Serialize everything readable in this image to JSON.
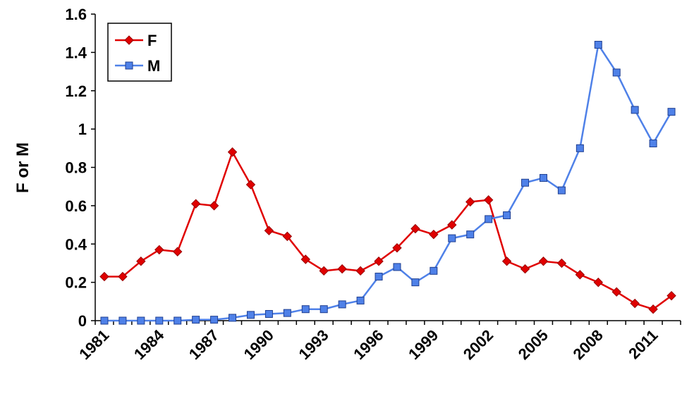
{
  "chart_data": {
    "type": "line",
    "y_label": "F or M",
    "categories": [
      "1981",
      null,
      null,
      "1984",
      null,
      null,
      "1987",
      null,
      null,
      "1990",
      null,
      null,
      "1993",
      null,
      null,
      "1996",
      null,
      null,
      "1999",
      null,
      null,
      "2002",
      null,
      null,
      "2005",
      null,
      null,
      "2008",
      null,
      null,
      "2011",
      null
    ],
    "series": [
      {
        "name": "F",
        "color": "#e00000",
        "marker": "diamond",
        "values": [
          0.23,
          0.23,
          0.31,
          0.37,
          0.36,
          0.61,
          0.6,
          0.88,
          0.71,
          0.47,
          0.44,
          0.32,
          0.26,
          0.27,
          0.26,
          0.31,
          0.38,
          0.48,
          0.45,
          0.5,
          0.62,
          0.63,
          0.31,
          0.27,
          0.31,
          0.3,
          0.24,
          0.2,
          0.15,
          0.09,
          0.06,
          0.13
        ]
      },
      {
        "name": "M",
        "color": "#4f81e8",
        "marker": "square",
        "values": [
          0,
          0,
          0,
          0,
          0,
          0.005,
          0.005,
          0.015,
          0.03,
          0.035,
          0.04,
          0.06,
          0.06,
          0.085,
          0.105,
          0.23,
          0.28,
          0.2,
          0.26,
          0.43,
          0.45,
          0.53,
          0.55,
          0.72,
          0.745,
          0.68,
          0.9,
          1.44,
          1.295,
          1.1,
          0.925,
          1.09
        ]
      }
    ],
    "ylim": [
      0,
      1.6
    ],
    "yticks": [
      0,
      0.2,
      0.4,
      0.6,
      0.8,
      1,
      1.2,
      1.4,
      1.6
    ],
    "legend": "top-left"
  }
}
